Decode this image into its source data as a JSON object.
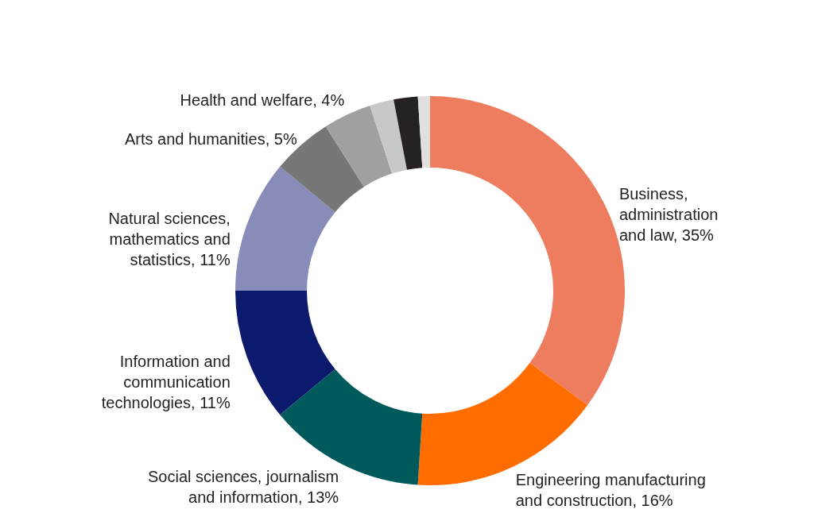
{
  "chart_data": {
    "type": "donut",
    "categories": [
      "Business, administration and law",
      "Engineering manufacturing and construction",
      "Social sciences, journalism and information",
      "Information and communication technologies",
      "Natural sciences, mathematics and statistics",
      "Arts and humanities",
      "Health and welfare",
      null,
      null,
      null
    ],
    "values": [
      35,
      16,
      13,
      11,
      11,
      5,
      4,
      2,
      2,
      1
    ],
    "value_labels": [
      "35%",
      "16%",
      "13%",
      "11%",
      "11%",
      "5%",
      "4%",
      null,
      null,
      null
    ],
    "colors": [
      "#ed7d5e",
      "#ff6d00",
      "#005a5b",
      "#0c1a6e",
      "#878cb8",
      "#777777",
      "#a0a0a3",
      "#c8c8ca",
      "#262223",
      "#e0e0e0"
    ]
  }
}
